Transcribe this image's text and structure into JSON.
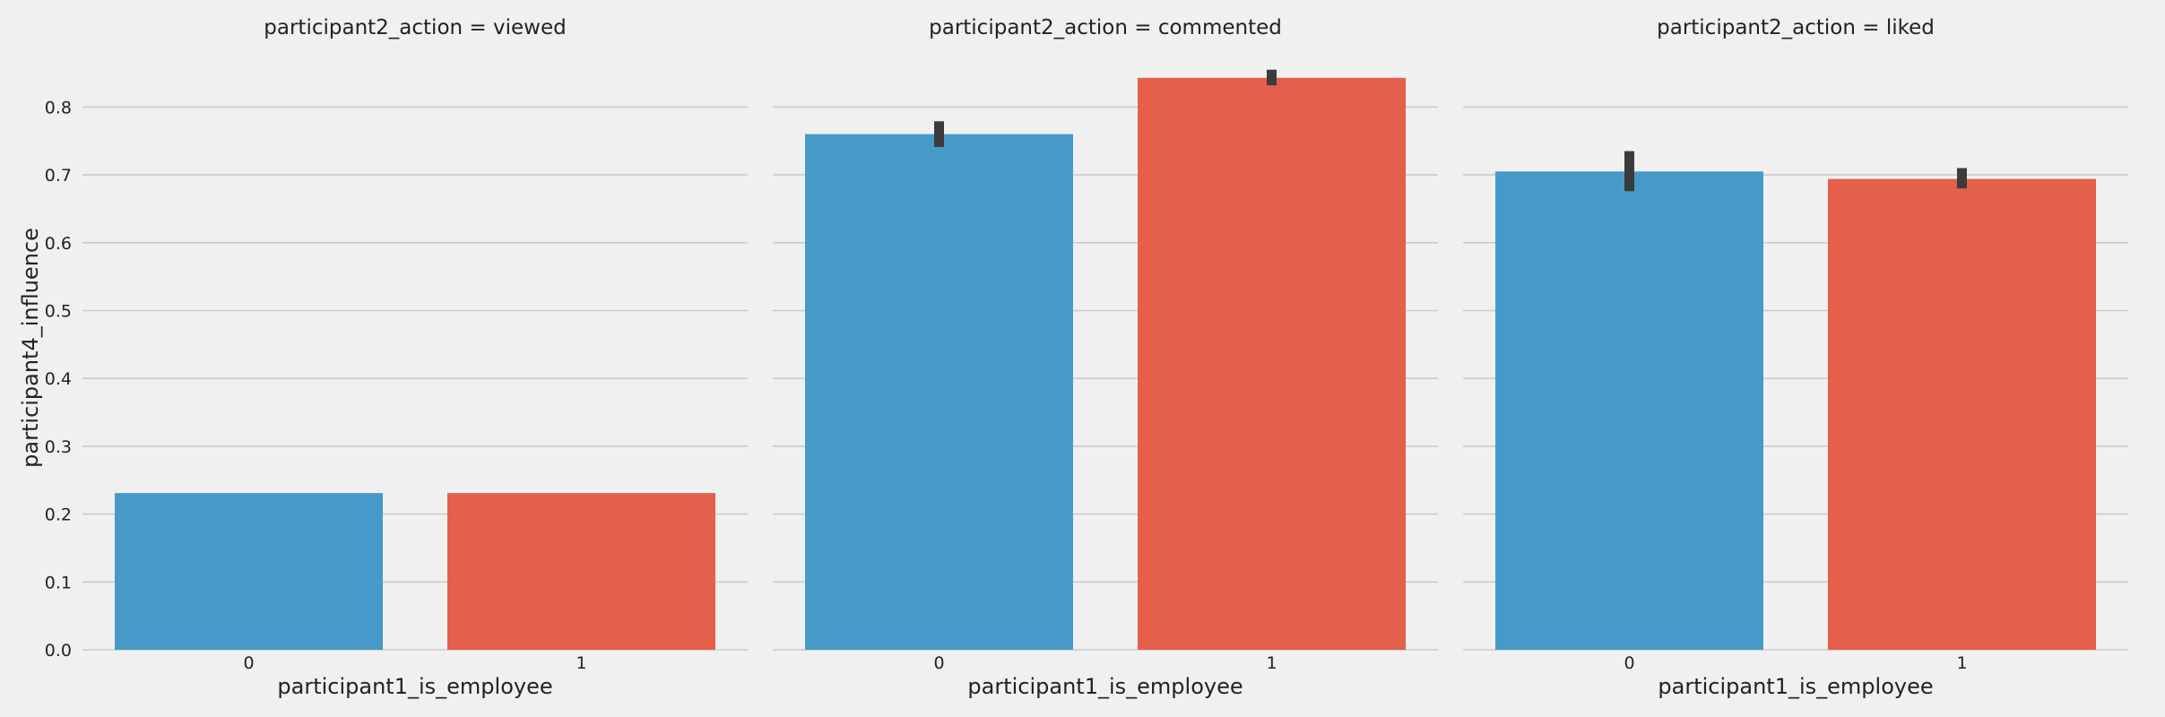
{
  "chart_data": {
    "type": "bar",
    "ylabel": "participant4_influence",
    "xlabel": "participant1_is_employee",
    "categories": [
      "0",
      "1"
    ],
    "ylim": [
      0,
      0.86
    ],
    "yticks": [
      "0.0",
      "0.1",
      "0.2",
      "0.3",
      "0.4",
      "0.5",
      "0.6",
      "0.7",
      "0.8"
    ],
    "grid": "horizontal",
    "colors": [
      "#459ac8",
      "#e4604a"
    ],
    "error_bar_color": "#3b3b3b",
    "panels": [
      {
        "title": "participant2_action = viewed",
        "values": [
          0.231,
          0.231
        ],
        "error_bars": [
          null,
          null
        ]
      },
      {
        "title": "participant2_action = commented",
        "values": [
          0.76,
          0.843
        ],
        "error_bars": [
          [
            0.741,
            0.779
          ],
          [
            0.832,
            0.855
          ]
        ]
      },
      {
        "title": "participant2_action = liked",
        "values": [
          0.705,
          0.694
        ],
        "error_bars": [
          [
            0.676,
            0.735
          ],
          [
            0.68,
            0.71
          ]
        ]
      }
    ]
  }
}
